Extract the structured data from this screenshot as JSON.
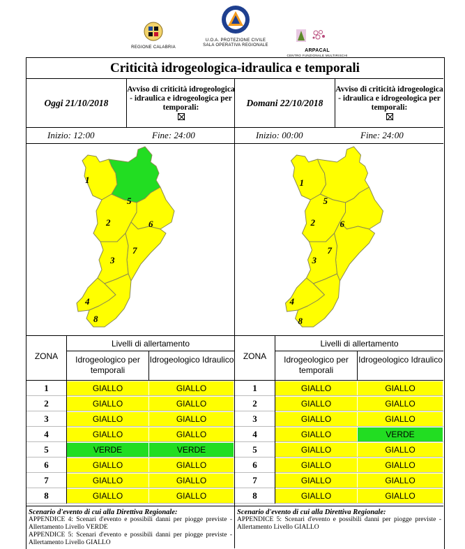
{
  "header": {
    "regione_caption": "REGIONE CALABRIA",
    "pc_caption_1": "U.O.A. PROTEZIONE CIVILE",
    "pc_caption_2": "SALA OPERATIVA REGIONALE",
    "arpacal_name": "ARPACAL",
    "arpacal_caption": "CENTRO FUNZIONALE MULTIRISCHI"
  },
  "title": "Criticità idrogeologica-idraulica e temporali",
  "colors": {
    "giallo": "#ffff00",
    "verde": "#22dd22",
    "map_border": "#8a8a50"
  },
  "days": [
    {
      "date": "Oggi 21/10/2018",
      "avviso_label": "Avviso di criticità idrogeologica - idraulica e idrogeologica per temporali:",
      "inizio": "Inizio: 12:00",
      "fine": "Fine: 24:00",
      "zone_labels": [
        "1",
        "2",
        "3",
        "4",
        "5",
        "6",
        "7",
        "8"
      ],
      "table": {
        "zona_header": "ZONA",
        "livelli_header": "Livelli di allertamento",
        "col1_header": "Idrogeologico per temporali",
        "col2_header": "Idrogeologico Idraulico",
        "rows": [
          {
            "zona": "1",
            "a": "GIALLO",
            "b": "GIALLO"
          },
          {
            "zona": "2",
            "a": "GIALLO",
            "b": "GIALLO"
          },
          {
            "zona": "3",
            "a": "GIALLO",
            "b": "GIALLO"
          },
          {
            "zona": "4",
            "a": "GIALLO",
            "b": "GIALLO"
          },
          {
            "zona": "5",
            "a": "VERDE",
            "b": "VERDE"
          },
          {
            "zona": "6",
            "a": "GIALLO",
            "b": "GIALLO"
          },
          {
            "zona": "7",
            "a": "GIALLO",
            "b": "GIALLO"
          },
          {
            "zona": "8",
            "a": "GIALLO",
            "b": "GIALLO"
          }
        ]
      },
      "scenario_title": "Scenario d'evento di cui alla Direttiva Regionale:",
      "scenario_lines": [
        "APPENDICE 4: Scenari d'evento e possibili danni per piogge previste - Allertamento Livello VERDE",
        "APPENDICE 5: Scenari d'evento e possibili danni per piogge previste - Allertamento Livello GIALLO"
      ]
    },
    {
      "date": "Domani 22/10/2018",
      "avviso_label": "Avviso di criticità idrogeologica - idraulica e idrogeologica per temporali:",
      "inizio": "Inizio: 00:00",
      "fine": "Fine: 24:00",
      "zone_labels": [
        "1",
        "2",
        "3",
        "4",
        "5",
        "6",
        "7",
        "8"
      ],
      "table": {
        "zona_header": "ZONA",
        "livelli_header": "Livelli di allertamento",
        "col1_header": "Idrogeologico per temporali",
        "col2_header": "Idrogeologico Idraulico",
        "rows": [
          {
            "zona": "1",
            "a": "GIALLO",
            "b": "GIALLO"
          },
          {
            "zona": "2",
            "a": "GIALLO",
            "b": "GIALLO"
          },
          {
            "zona": "3",
            "a": "GIALLO",
            "b": "GIALLO"
          },
          {
            "zona": "4",
            "a": "GIALLO",
            "b": "VERDE"
          },
          {
            "zona": "5",
            "a": "GIALLO",
            "b": "GIALLO"
          },
          {
            "zona": "6",
            "a": "GIALLO",
            "b": "GIALLO"
          },
          {
            "zona": "7",
            "a": "GIALLO",
            "b": "GIALLO"
          },
          {
            "zona": "8",
            "a": "GIALLO",
            "b": "GIALLO"
          }
        ]
      },
      "scenario_title": "Scenario d'evento di cui alla Direttiva Regionale:",
      "scenario_lines": [
        "APPENDICE 5: Scenari d'evento e possibili danni per piogge previste - Allertamento Livello GIALLO"
      ]
    }
  ]
}
